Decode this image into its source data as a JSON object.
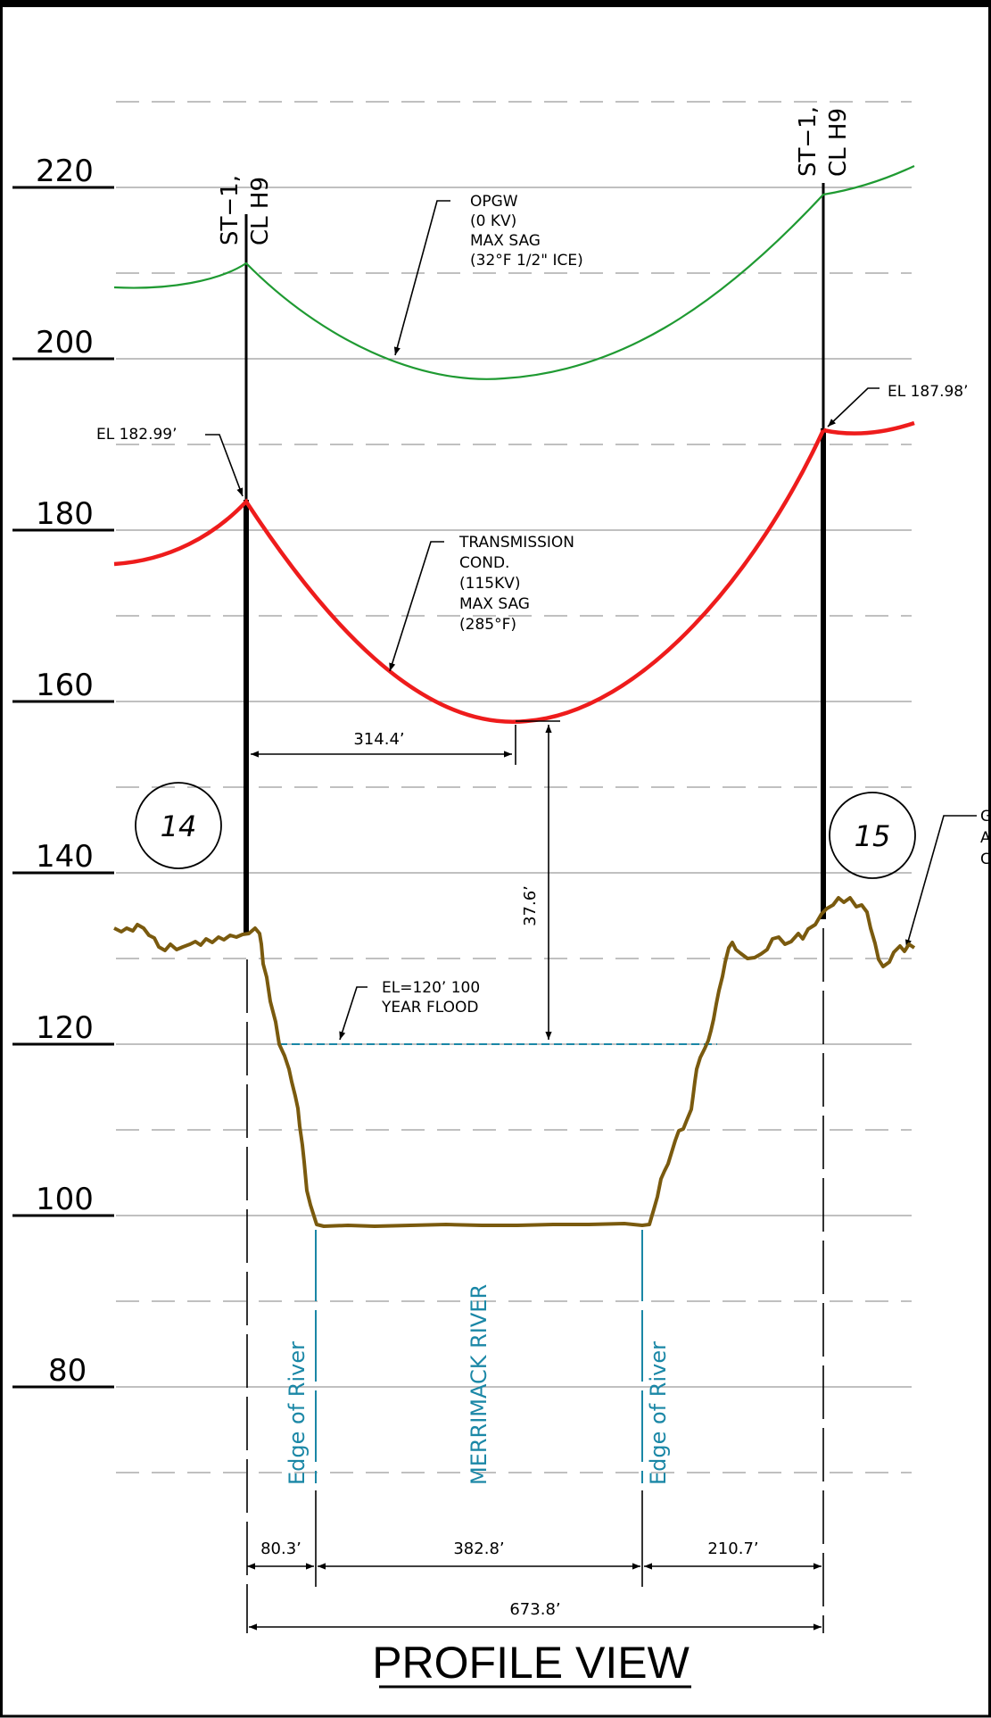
{
  "title": "PROFILE VIEW",
  "elevation_labels": [
    "220",
    "200",
    "180",
    "160",
    "140",
    "120",
    "100",
    "80"
  ],
  "structures": [
    {
      "name_line1": "ST−1,",
      "name_line2": "CL H9",
      "elevation": "EL 182.99’",
      "station": "14"
    },
    {
      "name_line1": "ST−1,",
      "name_line2": "CL H9",
      "elevation": "EL 187.98’",
      "station": "15"
    }
  ],
  "opgw_note": [
    "OPGW",
    "(0 KV)",
    "MAX SAG",
    "(32°F 1/2\" ICE)"
  ],
  "conductor_note": [
    "TRANSMISSION",
    "COND.",
    "(115KV)",
    "MAX SAG",
    "(285°F)"
  ],
  "flood_note": [
    "EL=120’ 100",
    "YEAR FLOOD"
  ],
  "ground_note": [
    "G",
    "A",
    "C"
  ],
  "river_labels": {
    "left_edge": "Edge of River",
    "river": "MERRIMACK RIVER",
    "right_edge": "Edge of River"
  },
  "dimensions": {
    "low_point_offset": "314.4’",
    "clearance": "37.6’",
    "left_bank": "80.3’",
    "river_width": "382.8’",
    "right_bank": "210.7’",
    "span": "673.8’"
  },
  "colors": {
    "opgw": "#1f9a32",
    "conductor": "#ee1c1c",
    "ground": "#7a5a0e",
    "water": "#1a87a6",
    "grid": "#9a9a9a"
  }
}
